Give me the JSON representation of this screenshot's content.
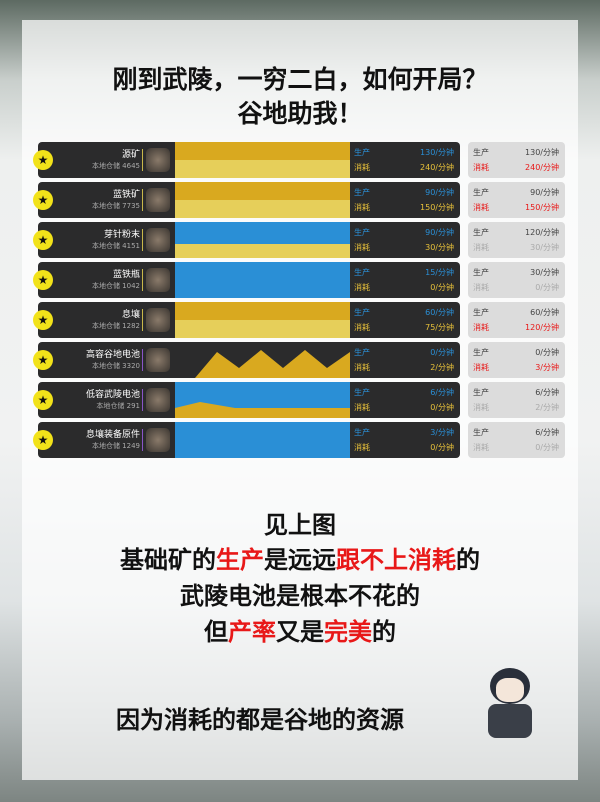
{
  "title": {
    "line1": "刚到武陵，一穷二白，如何开局？",
    "line2": "谷地助我！"
  },
  "labels": {
    "produce": "生产",
    "consume": "消耗"
  },
  "rows": [
    {
      "name": "源矿",
      "storage": "本地仓储 4645",
      "prod": "130/分钟",
      "cons": "240/分钟",
      "alt_prod": "130/分钟",
      "alt_cons": "240/分钟",
      "alt_deficit": true,
      "chart": "yellow"
    },
    {
      "name": "蓝铁矿",
      "storage": "本地仓储 7735",
      "prod": "90/分钟",
      "cons": "150/分钟",
      "alt_prod": "90/分钟",
      "alt_cons": "150/分钟",
      "alt_deficit": true,
      "chart": "yellow"
    },
    {
      "name": "芽针粉末",
      "storage": "本地仓储 4151",
      "prod": "90/分钟",
      "cons": "30/分钟",
      "alt_prod": "120/分钟",
      "alt_cons": "30/分钟",
      "alt_deficit": false,
      "chart": "blue-yellow"
    },
    {
      "name": "蓝铁瓶",
      "storage": "本地仓储 1042",
      "prod": "15/分钟",
      "cons": "0/分钟",
      "alt_prod": "30/分钟",
      "alt_cons": "0/分钟",
      "alt_deficit": false,
      "chart": "blue"
    },
    {
      "name": "息壤",
      "storage": "本地仓储 1282",
      "prod": "60/分钟",
      "cons": "75/分钟",
      "alt_prod": "60/分钟",
      "alt_cons": "120/分钟",
      "alt_deficit": true,
      "chart": "yellow"
    },
    {
      "name": "高容谷地电池",
      "storage": "本地仓储 3320",
      "prod": "0/分钟",
      "cons": "2/分钟",
      "alt_prod": "0/分钟",
      "alt_cons": "3/分钟",
      "alt_deficit": true,
      "chart": "zigzag"
    },
    {
      "name": "低容武陵电池",
      "storage": "本地仓储 291",
      "prod": "6/分钟",
      "cons": "0/分钟",
      "alt_prod": "6/分钟",
      "alt_cons": "2/分钟",
      "alt_deficit": false,
      "chart": "blue-wedge"
    },
    {
      "name": "息壤装备原件",
      "storage": "本地仓储 1249",
      "prod": "3/分钟",
      "cons": "0/分钟",
      "alt_prod": "6/分钟",
      "alt_cons": "0/分钟",
      "alt_deficit": false,
      "chart": "blue"
    }
  ],
  "text": {
    "l1": "见上图",
    "l2a": "基础矿的",
    "l2b": "生产",
    "l2c": "是远远",
    "l2d": "跟不上消耗",
    "l2e": "的",
    "l3": "武陵电池是根本不花的",
    "l4a": "但",
    "l4b": "产率",
    "l4c": "又是",
    "l4d": "完美",
    "l4e": "的",
    "l5": "因为消耗的都是谷地的资源"
  },
  "colors": {
    "blue": "#2a8fd6",
    "yellow": "#e8c13a",
    "red": "#e81818",
    "star": "#f2e21a"
  }
}
